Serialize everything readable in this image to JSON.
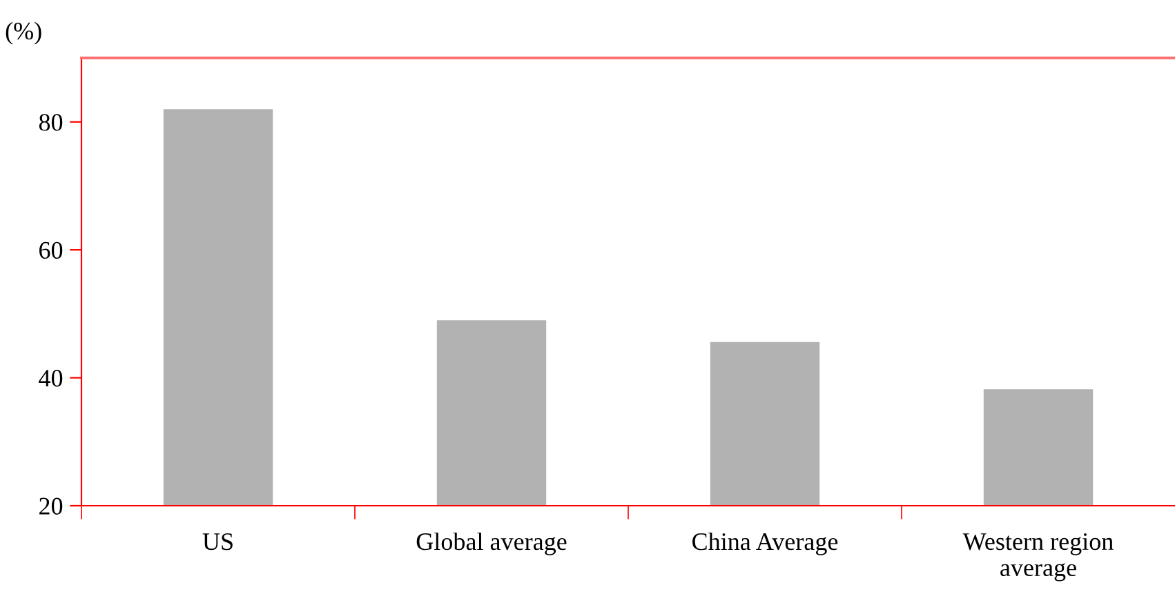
{
  "chart_data": {
    "type": "bar",
    "ylabel": "(%)",
    "categories": [
      "US",
      "Global average",
      "China Average",
      "Western region\naverage"
    ],
    "values": [
      82,
      49,
      45.6,
      38.2
    ],
    "color": "#b2b2b2",
    "ylim": [
      20,
      90
    ],
    "yticks": [
      20,
      40,
      60,
      80
    ],
    "grid": false
  }
}
